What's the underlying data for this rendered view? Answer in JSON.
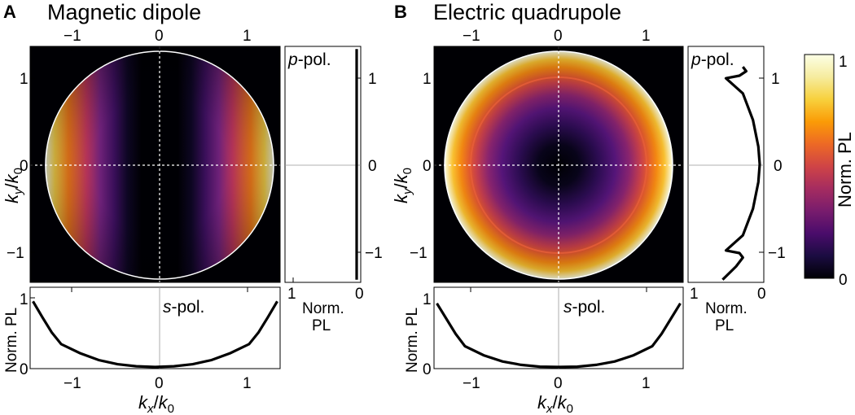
{
  "panels": [
    {
      "letter": "A",
      "title": "Magnetic dipole",
      "p_pol_label": "-pol.",
      "s_pol_label": "-pol.",
      "p_letter": "p",
      "s_letter": "s"
    },
    {
      "letter": "B",
      "title": "Electric quadrupole",
      "p_pol_label": "-pol.",
      "s_pol_label": "-pol.",
      "p_letter": "p",
      "s_letter": "s"
    }
  ],
  "axis_labels": {
    "k_main": "k",
    "x_sub": "x",
    "y_sub": "y",
    "zero_sub": "0",
    "slash": "/",
    "norm": "Norm.",
    "pl": "PL",
    "norm_pl": "Norm. PL"
  },
  "colorbar": {
    "label": "Norm. PL",
    "min_label": "0",
    "max_label": "1",
    "colormap": "inferno"
  },
  "chart_data": [
    {
      "type": "heatmap",
      "title": "Magnetic dipole",
      "xlabel": "kx/k0",
      "ylabel": "ky/k0",
      "xlim": [
        -1.33,
        1.33
      ],
      "ylim": [
        -1.33,
        1.33
      ],
      "xticks": [
        -1,
        0,
        1
      ],
      "yticks": [
        -1,
        0,
        1
      ],
      "aperture_radius": 1.3,
      "pattern": "magnetic-dipole",
      "s_pol_cut": {
        "xlabel": "kx/k0",
        "ylabel": "Norm. PL",
        "x": [
          -1.3,
          -1.2,
          -1.1,
          -1.0,
          -0.8,
          -0.6,
          -0.4,
          -0.2,
          0,
          0.2,
          0.4,
          0.6,
          0.8,
          1.0,
          1.1,
          1.2,
          1.3
        ],
        "y": [
          0.95,
          0.72,
          0.5,
          0.33,
          0.2,
          0.1,
          0.04,
          0.01,
          0.0,
          0.01,
          0.04,
          0.1,
          0.2,
          0.33,
          0.5,
          0.72,
          0.95
        ],
        "ylim": [
          0,
          1
        ]
      },
      "p_pol_cut": {
        "xlabel": "Norm. PL",
        "ylabel": "ky/k0",
        "y": [
          -1.3,
          -1.0,
          -0.5,
          0,
          0.5,
          1.0,
          1.3
        ],
        "x": [
          0.0,
          0.0,
          0.0,
          0.0,
          0.0,
          0.0,
          0.0
        ],
        "xlim": [
          1,
          0
        ]
      }
    },
    {
      "type": "heatmap",
      "title": "Electric quadrupole",
      "xlabel": "kx/k0",
      "ylabel": "ky/k0",
      "xlim": [
        -1.33,
        1.33
      ],
      "ylim": [
        -1.33,
        1.33
      ],
      "xticks": [
        -1,
        0,
        1
      ],
      "yticks": [
        -1,
        0,
        1
      ],
      "aperture_radius": 1.3,
      "pattern": "electric-quadrupole",
      "s_pol_cut": {
        "xlabel": "kx/k0",
        "ylabel": "Norm. PL",
        "x": [
          -1.3,
          -1.2,
          -1.1,
          -1.0,
          -0.8,
          -0.6,
          -0.4,
          -0.2,
          0,
          0.2,
          0.4,
          0.6,
          0.8,
          1.0,
          1.1,
          1.2,
          1.3
        ],
        "y": [
          0.92,
          0.7,
          0.48,
          0.3,
          0.17,
          0.08,
          0.03,
          0.005,
          0.0,
          0.005,
          0.03,
          0.08,
          0.17,
          0.3,
          0.48,
          0.7,
          0.92
        ],
        "ylim": [
          0,
          1
        ]
      },
      "p_pol_cut": {
        "xlabel": "Norm. PL",
        "ylabel": "ky/k0",
        "y": [
          -1.3,
          -1.15,
          -1.05,
          -1.0,
          -0.97,
          -0.8,
          -0.5,
          -0.2,
          0,
          0.2,
          0.5,
          0.8,
          0.97,
          1.0,
          1.05,
          1.1
        ],
        "x": [
          0.55,
          0.35,
          0.25,
          0.3,
          0.5,
          0.25,
          0.1,
          0.02,
          0.0,
          0.02,
          0.1,
          0.25,
          0.5,
          0.3,
          0.2,
          0.25
        ],
        "xlim": [
          1,
          0
        ]
      }
    }
  ]
}
